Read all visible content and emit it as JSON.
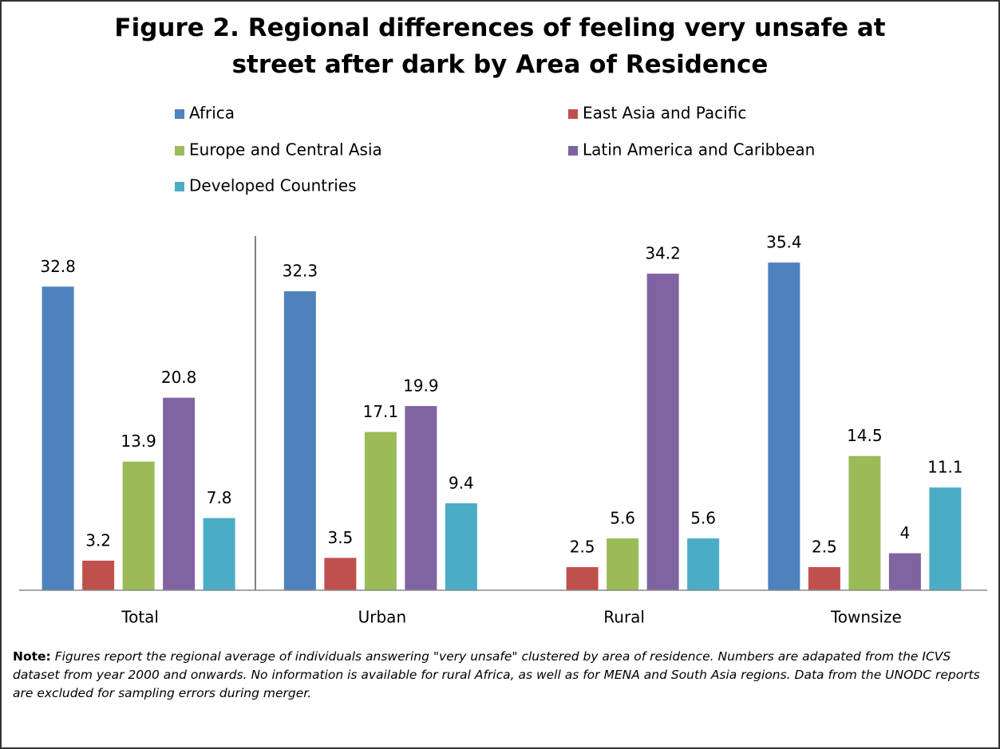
{
  "chart_data": {
    "type": "bar",
    "title": "Figure 2. Regional differences of feeling very unsafe at street after dark by Area of Residence",
    "categories": [
      "Total",
      "Urban",
      "Rural",
      "Townsize"
    ],
    "series": [
      {
        "name": "Africa",
        "color": "#4f81bd",
        "values": [
          32.8,
          32.3,
          null,
          35.4
        ]
      },
      {
        "name": "East Asia and Pacific",
        "color": "#c0504d",
        "values": [
          3.2,
          3.5,
          2.5,
          2.5
        ]
      },
      {
        "name": "Europe and Central Asia",
        "color": "#9bbb59",
        "values": [
          13.9,
          17.1,
          5.6,
          14.5
        ]
      },
      {
        "name": "Latin America and Caribbean",
        "color": "#8064a2",
        "values": [
          20.8,
          19.9,
          34.2,
          4
        ]
      },
      {
        "name": "Developed Countries",
        "color": "#4bacc6",
        "values": [
          7.8,
          9.4,
          5.6,
          11.1
        ]
      }
    ],
    "ylim": [
      0,
      38
    ],
    "legend": "top",
    "note_label": "Note:",
    "note": "Figures report the regional average of individuals answering \"very unsafe\"  clustered by area of residence. Numbers are adapated from the ICVS dataset from year 2000 and onwards. No information is available for rural Africa, as well as for MENA and South Asia regions. Data from the UNODC reports are excluded for sampling errors during merger."
  }
}
